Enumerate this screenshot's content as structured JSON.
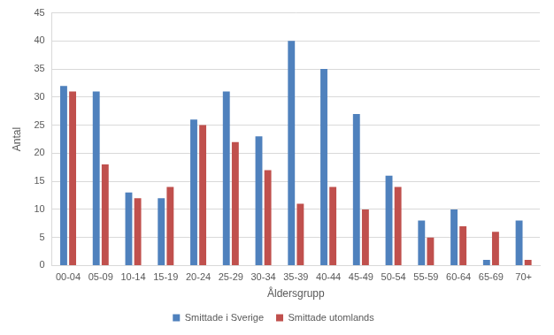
{
  "chart_data": {
    "type": "bar",
    "x_label": "Åldersgrupp",
    "y_label": "Antal",
    "categories": [
      "00-04",
      "05-09",
      "10-14",
      "15-19",
      "20-24",
      "25-29",
      "30-34",
      "35-39",
      "40-44",
      "45-49",
      "50-54",
      "55-59",
      "60-64",
      "65-69",
      "70+"
    ],
    "series": [
      {
        "name": "Smittade i Sverige",
        "color": "#4f81bd",
        "values": [
          32,
          31,
          13,
          12,
          26,
          31,
          23,
          40,
          35,
          27,
          16,
          8,
          10,
          1,
          8
        ]
      },
      {
        "name": "Smittade utomlands",
        "color": "#c0504d",
        "values": [
          31,
          18,
          12,
          14,
          25,
          22,
          17,
          11,
          14,
          10,
          14,
          5,
          7,
          6,
          1
        ]
      }
    ],
    "ylim": [
      0,
      45
    ],
    "yticks": [
      0,
      5,
      10,
      15,
      20,
      25,
      30,
      35,
      40,
      45
    ],
    "grid": true,
    "legend": "bottom"
  }
}
